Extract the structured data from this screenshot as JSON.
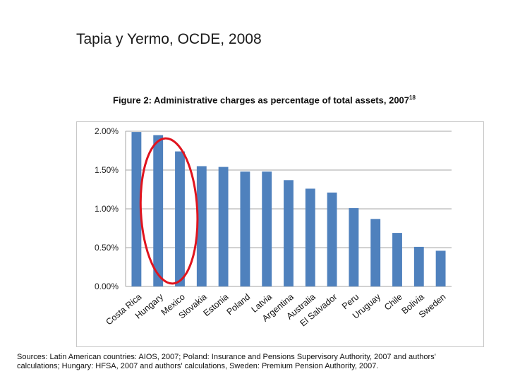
{
  "slide": {
    "title": "Tapia y Yermo, OCDE, 2008"
  },
  "figure": {
    "title": "Figure 2: Administrative charges as percentage of total assets, 2007",
    "footnote_ref": "18"
  },
  "sources": {
    "line1": "Sources: Latin American countries: AIOS, 2007; Poland: Insurance and Pensions Supervisory Authority, 2007 and authors'",
    "line2": "calculations; Hungary: HFSA, 2007 and authors' calculations, Sweden:  Premium Pension Authority, 2007."
  },
  "colors": {
    "bar": "#4f81bd",
    "grid": "#a6a6a6",
    "highlight_ellipse": "#e0141e"
  },
  "chart_data": {
    "type": "bar",
    "categories": [
      "Costa Rica",
      "Hungary",
      "Mexico",
      "Slovakia",
      "Estonia",
      "Poland",
      "Latvia",
      "Argentina",
      "Australia",
      "El Salvador",
      "Peru",
      "Uruguay",
      "Chile",
      "Bolivia",
      "Sweden"
    ],
    "values": [
      1.99,
      1.95,
      1.74,
      1.55,
      1.54,
      1.48,
      1.48,
      1.37,
      1.26,
      1.21,
      1.01,
      0.87,
      0.69,
      0.51,
      0.46
    ],
    "value_unit": "%",
    "ylim": [
      0,
      2.0
    ],
    "yticks": [
      "0.00%",
      "0.50%",
      "1.00%",
      "1.50%",
      "2.00%"
    ],
    "ytick_values": [
      0,
      0.5,
      1.0,
      1.5,
      2.0
    ],
    "grid": true,
    "legend": "none",
    "annotation": {
      "type": "ellipse",
      "encloses_categories": [
        "Hungary",
        "Mexico"
      ]
    }
  }
}
